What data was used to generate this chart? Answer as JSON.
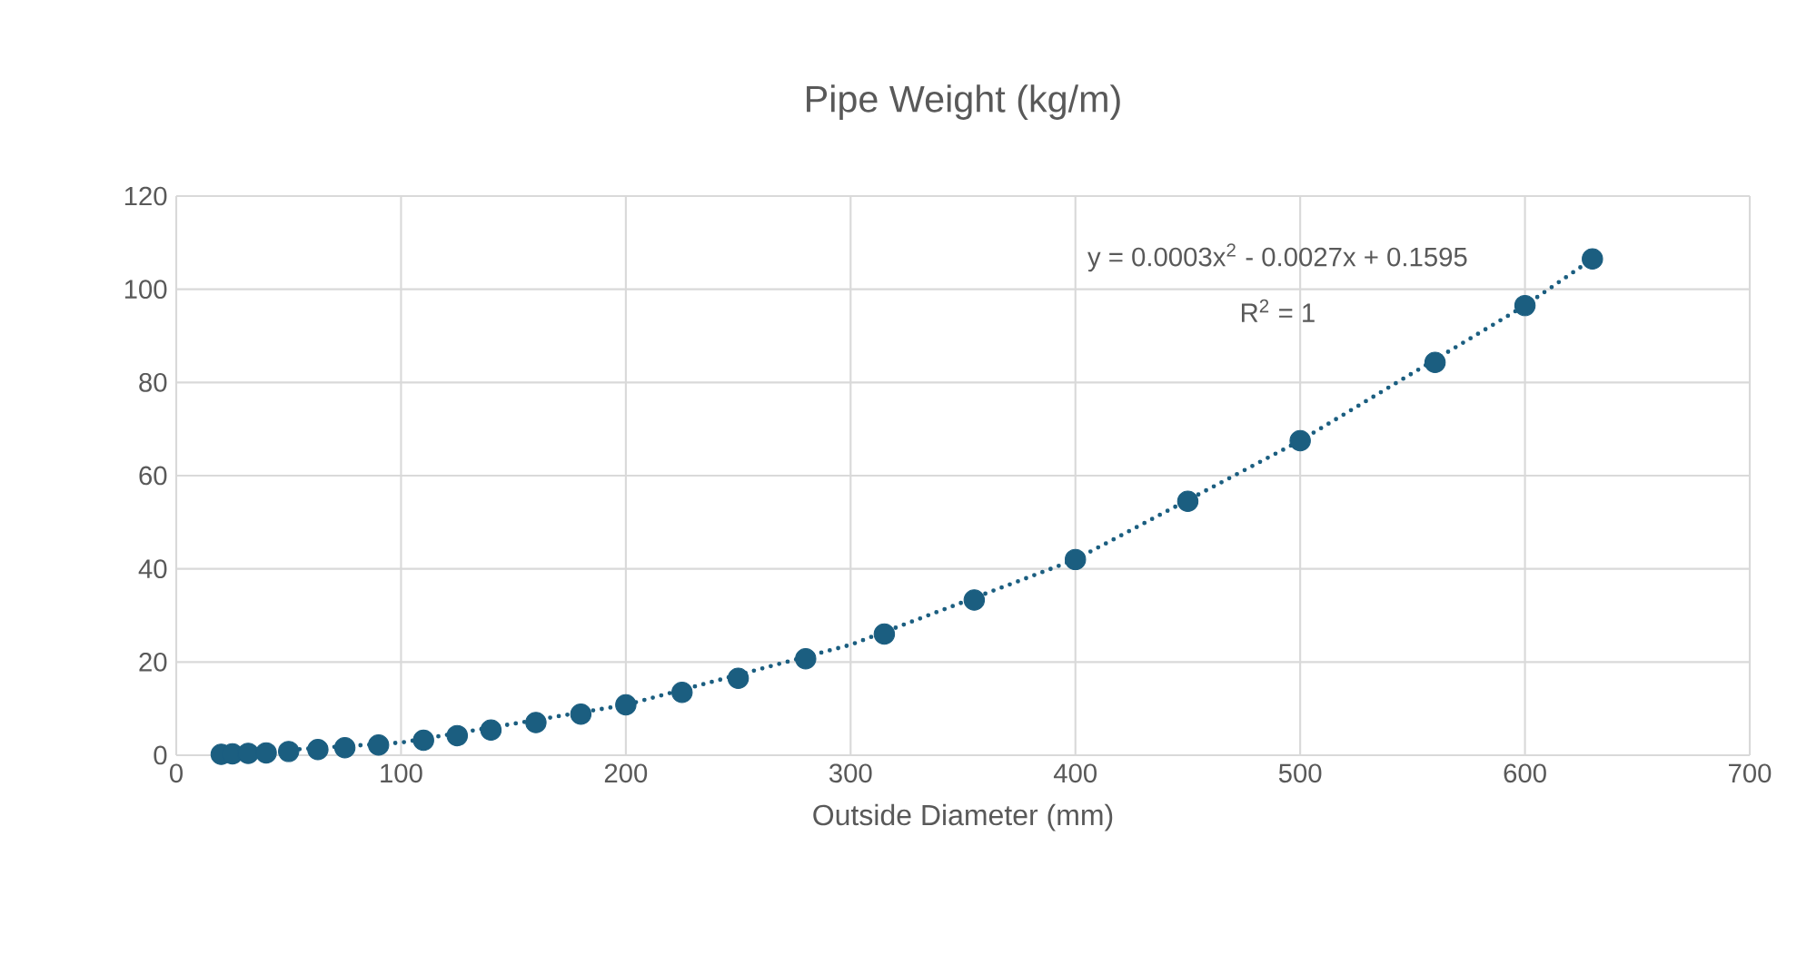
{
  "chart_data": {
    "type": "scatter",
    "title": "Pipe Weight (kg/m)",
    "xlabel": "Outside Diameter (mm)",
    "x": [
      20,
      25,
      32,
      40,
      50,
      63,
      75,
      90,
      110,
      125,
      140,
      160,
      180,
      200,
      225,
      250,
      280,
      315,
      355,
      400,
      450,
      500,
      560,
      600,
      630
    ],
    "series": [
      {
        "color": "#1b5e80",
        "marker": "circle",
        "values": [
          0.2,
          0.3,
          0.4,
          0.5,
          0.8,
          1.2,
          1.6,
          2.2,
          3.2,
          4.2,
          5.4,
          7,
          8.8,
          10.8,
          13.5,
          16.5,
          20.7,
          26,
          33.3,
          42,
          54.5,
          67.5,
          84.3,
          96.5,
          106.5
        ]
      },
      {
        "type": "line",
        "color": "#1b5e80",
        "line_style": "dotted",
        "x": [
          20,
          100,
          200,
          300,
          400,
          500,
          600,
          630
        ],
        "values": [
          0.2,
          2.7,
          10.8,
          23.7,
          42,
          67.5,
          96.5,
          106.5
        ]
      }
    ],
    "annotations": [
      "y = 0.0003x$^{2}$ - 0.0027x + 0.1595",
      "R$^{2}$ = 1"
    ],
    "xlim": [
      0,
      700
    ],
    "xticks": [
      0,
      100,
      200,
      300,
      400,
      500,
      600,
      700
    ],
    "ylim": [
      0,
      120
    ],
    "yticks": [
      0,
      20,
      40,
      60,
      80,
      100,
      120
    ],
    "grid": true
  }
}
